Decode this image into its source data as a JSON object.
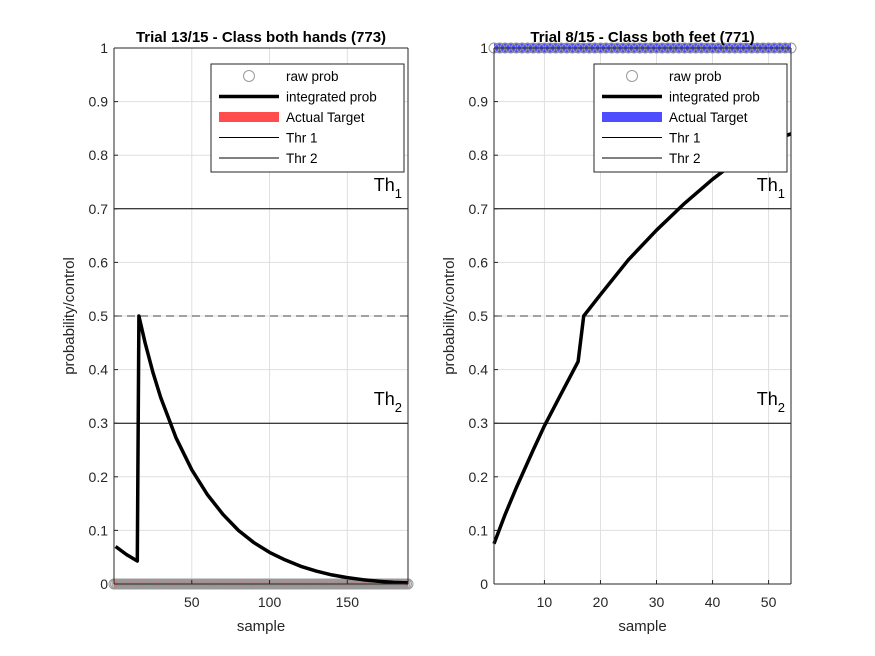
{
  "chart_data": [
    {
      "type": "line",
      "title": "Trial 13/15 - Class both hands (773)",
      "xlabel": "sample",
      "ylabel": "probability/control",
      "xlim": [
        0,
        189
      ],
      "ylim": [
        0,
        1
      ],
      "xticks": [
        50,
        100,
        150
      ],
      "yticks": [
        0,
        0.1,
        0.2,
        0.3,
        0.4,
        0.5,
        0.6,
        0.7,
        0.8,
        0.9,
        1
      ],
      "ytick_labels": [
        "0",
        "0.1",
        "0.2",
        "0.3",
        "0.4",
        "0.5",
        "0.6",
        "0.7",
        "0.8",
        "0.9",
        "1"
      ],
      "grid": true,
      "legend_position": "top-right",
      "legend": [
        "raw prob",
        "integrated prob",
        "Actual Target",
        "Thr 1",
        "Thr 2"
      ],
      "target_color": "#ff2020",
      "raw_prob_level": 0,
      "actual_target_level": 0,
      "thresholds": [
        {
          "label": "Th",
          "sub": "1",
          "value": 0.7
        },
        {
          "label": "Th",
          "sub": "2",
          "value": 0.3
        }
      ],
      "dashed_level": 0.5,
      "integrated_prob": {
        "x": [
          1,
          8,
          15,
          16,
          20,
          25,
          30,
          40,
          50,
          60,
          70,
          80,
          90,
          100,
          110,
          120,
          130,
          140,
          150,
          160,
          170,
          180,
          189
        ],
        "y": [
          0.07,
          0.055,
          0.043,
          0.5,
          0.45,
          0.395,
          0.348,
          0.272,
          0.213,
          0.167,
          0.13,
          0.1,
          0.077,
          0.059,
          0.045,
          0.033,
          0.024,
          0.017,
          0.012,
          0.008,
          0.005,
          0.003,
          0.002
        ]
      }
    },
    {
      "type": "line",
      "title": "Trial 8/15 - Class both feet (771)",
      "xlabel": "sample",
      "ylabel": "probability/control",
      "xlim": [
        1,
        54
      ],
      "ylim": [
        0,
        1
      ],
      "xticks": [
        10,
        20,
        30,
        40,
        50
      ],
      "yticks": [
        0,
        0.1,
        0.2,
        0.3,
        0.4,
        0.5,
        0.6,
        0.7,
        0.8,
        0.9,
        1
      ],
      "ytick_labels": [
        "0",
        "0.1",
        "0.2",
        "0.3",
        "0.4",
        "0.5",
        "0.6",
        "0.7",
        "0.8",
        "0.9",
        "1"
      ],
      "grid": true,
      "legend_position": "top-right",
      "legend": [
        "raw prob",
        "integrated prob",
        "Actual Target",
        "Thr 1",
        "Thr 2"
      ],
      "target_color": "#2020ff",
      "raw_prob_level": 1,
      "actual_target_level": 1,
      "thresholds": [
        {
          "label": "Th",
          "sub": "1",
          "value": 0.7
        },
        {
          "label": "Th",
          "sub": "2",
          "value": 0.3
        }
      ],
      "dashed_level": 0.5,
      "integrated_prob": {
        "x": [
          1,
          3,
          5,
          8,
          10,
          13,
          16,
          17,
          20,
          25,
          30,
          35,
          40,
          45,
          50,
          54
        ],
        "y": [
          0.075,
          0.13,
          0.18,
          0.25,
          0.295,
          0.355,
          0.415,
          0.5,
          0.54,
          0.605,
          0.66,
          0.71,
          0.755,
          0.795,
          0.825,
          0.84
        ]
      }
    }
  ]
}
